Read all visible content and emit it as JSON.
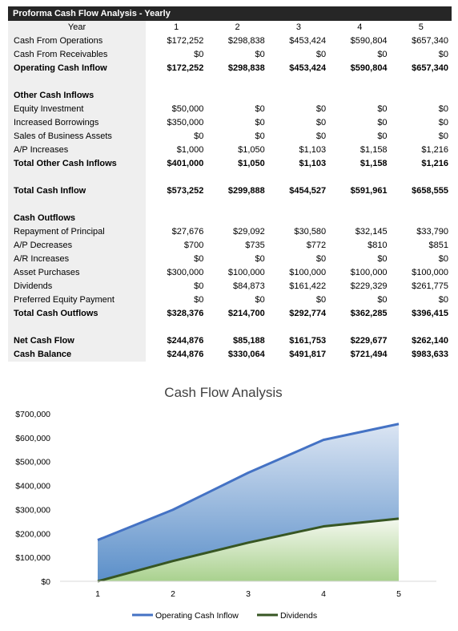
{
  "sheet": {
    "title": "Proforma Cash Flow Analysis - Yearly",
    "header_label": "Year",
    "years": [
      "1",
      "2",
      "3",
      "4",
      "5"
    ],
    "rows": [
      {
        "label": "Cash From Operations",
        "values": [
          "$172,252",
          "$298,838",
          "$453,424",
          "$590,804",
          "$657,340"
        ],
        "bold": false
      },
      {
        "label": "Cash From Receivables",
        "values": [
          "$0",
          "$0",
          "$0",
          "$0",
          "$0"
        ],
        "bold": false
      },
      {
        "label": "Operating Cash Inflow",
        "values": [
          "$172,252",
          "$298,838",
          "$453,424",
          "$590,804",
          "$657,340"
        ],
        "bold": true
      },
      {
        "label": "",
        "values": [
          "",
          "",
          "",
          "",
          ""
        ],
        "bold": false
      },
      {
        "label": "Other Cash Inflows",
        "values": [
          "",
          "",
          "",
          "",
          ""
        ],
        "bold": true
      },
      {
        "label": "Equity Investment",
        "values": [
          "$50,000",
          "$0",
          "$0",
          "$0",
          "$0"
        ],
        "bold": false
      },
      {
        "label": "Increased Borrowings",
        "values": [
          "$350,000",
          "$0",
          "$0",
          "$0",
          "$0"
        ],
        "bold": false
      },
      {
        "label": "Sales of Business Assets",
        "values": [
          "$0",
          "$0",
          "$0",
          "$0",
          "$0"
        ],
        "bold": false
      },
      {
        "label": "A/P Increases",
        "values": [
          "$1,000",
          "$1,050",
          "$1,103",
          "$1,158",
          "$1,216"
        ],
        "bold": false
      },
      {
        "label": "Total Other Cash Inflows",
        "values": [
          "$401,000",
          "$1,050",
          "$1,103",
          "$1,158",
          "$1,216"
        ],
        "bold": true
      },
      {
        "label": "",
        "values": [
          "",
          "",
          "",
          "",
          ""
        ],
        "bold": false
      },
      {
        "label": "Total Cash Inflow",
        "values": [
          "$573,252",
          "$299,888",
          "$454,527",
          "$591,961",
          "$658,555"
        ],
        "bold": true
      },
      {
        "label": "",
        "values": [
          "",
          "",
          "",
          "",
          ""
        ],
        "bold": false
      },
      {
        "label": "Cash Outflows",
        "values": [
          "",
          "",
          "",
          "",
          ""
        ],
        "bold": true
      },
      {
        "label": "Repayment of Principal",
        "values": [
          "$27,676",
          "$29,092",
          "$30,580",
          "$32,145",
          "$33,790"
        ],
        "bold": false
      },
      {
        "label": "A/P Decreases",
        "values": [
          "$700",
          "$735",
          "$772",
          "$810",
          "$851"
        ],
        "bold": false
      },
      {
        "label": "A/R Increases",
        "values": [
          "$0",
          "$0",
          "$0",
          "$0",
          "$0"
        ],
        "bold": false
      },
      {
        "label": "Asset Purchases",
        "values": [
          "$300,000",
          "$100,000",
          "$100,000",
          "$100,000",
          "$100,000"
        ],
        "bold": false
      },
      {
        "label": "Dividends",
        "values": [
          "$0",
          "$84,873",
          "$161,422",
          "$229,329",
          "$261,775"
        ],
        "bold": false
      },
      {
        "label": "Preferred Equity Payment",
        "values": [
          "$0",
          "$0",
          "$0",
          "$0",
          "$0"
        ],
        "bold": false
      },
      {
        "label": "Total Cash Outflows",
        "values": [
          "$328,376",
          "$214,700",
          "$292,774",
          "$362,285",
          "$396,415"
        ],
        "bold": true
      },
      {
        "label": "",
        "values": [
          "",
          "",
          "",
          "",
          ""
        ],
        "bold": false
      },
      {
        "label": "Net Cash Flow",
        "values": [
          "$244,876",
          "$85,188",
          "$161,753",
          "$229,677",
          "$262,140"
        ],
        "bold": true
      },
      {
        "label": "Cash Balance",
        "values": [
          "$244,876",
          "$330,064",
          "$491,817",
          "$721,494",
          "$983,633"
        ],
        "bold": true
      }
    ]
  },
  "chart_data": {
    "type": "area",
    "title": "Cash Flow Analysis",
    "categories": [
      "1",
      "2",
      "3",
      "4",
      "5"
    ],
    "series": [
      {
        "name": "Operating Cash Inflow",
        "values": [
          172252,
          298838,
          453424,
          590804,
          657340
        ],
        "color": "#4472c4",
        "fill_top": "#dbe5f3",
        "fill_bottom": "#5b8fc9"
      },
      {
        "name": "Dividends",
        "values": [
          0,
          84873,
          161422,
          229329,
          261775
        ],
        "color": "#375623",
        "fill_top": "#f4f8ef",
        "fill_bottom": "#a9d18e"
      }
    ],
    "ylim": [
      0,
      700000
    ],
    "yticks": [
      "$0",
      "$100,000",
      "$200,000",
      "$300,000",
      "$400,000",
      "$500,000",
      "$600,000",
      "$700,000"
    ],
    "ytick_values": [
      0,
      100000,
      200000,
      300000,
      400000,
      500000,
      600000,
      700000
    ],
    "xlabel": "",
    "ylabel": "",
    "grid": false,
    "legend_position": "bottom"
  }
}
